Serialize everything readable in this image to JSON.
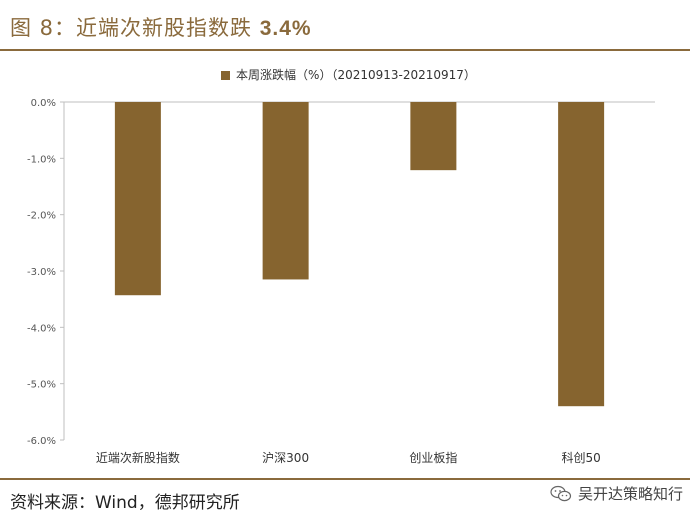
{
  "figure": {
    "label": "图 8：",
    "title_text": "近端次新股指数跌",
    "title_value": "3.4%"
  },
  "source": "资料来源：Wind，德邦研究所",
  "brand": {
    "name": "吴开达策略知行",
    "icon": "wechat-icon"
  },
  "colors": {
    "bar": "#86642f",
    "accent": "#8a6a3c"
  },
  "chart_data": {
    "type": "bar",
    "categories": [
      "近端次新股指数",
      "沪深300",
      "创业板指",
      "科创50"
    ],
    "series": [
      {
        "name": "本周涨跌幅（%）（20210913-20210917）",
        "values": [
          -3.43,
          -3.15,
          -1.21,
          -5.4
        ]
      }
    ],
    "ylim": [
      -6.0,
      0.0
    ],
    "yticks": [
      "0.0%",
      "-1.0%",
      "-2.0%",
      "-3.0%",
      "-4.0%",
      "-5.0%",
      "-6.0%"
    ],
    "ytick_values": [
      0,
      -1,
      -2,
      -3,
      -4,
      -5,
      -6
    ],
    "grid": false,
    "legend_position": "top-center"
  }
}
